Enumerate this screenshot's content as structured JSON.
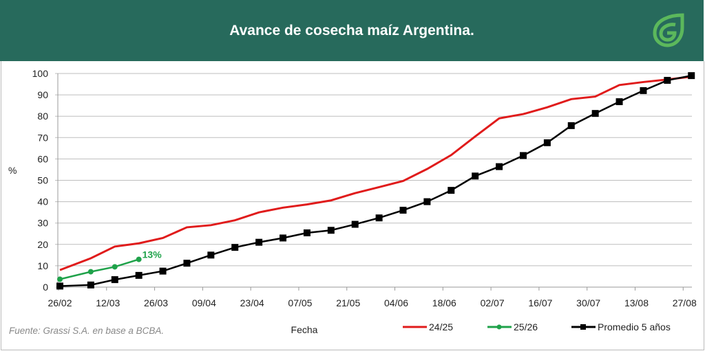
{
  "header": {
    "title": "Avance de cosecha maíz Argentina."
  },
  "source": "Fuente: Grassi S.A. en base a BCBA.",
  "colors": {
    "header": "#276a5c",
    "red": "#e01b1b",
    "green": "#1fa24a",
    "black": "#000000",
    "logo": "#5cb85c"
  },
  "chart_data": {
    "type": "line",
    "title": "Avance de cosecha maíz Argentina.",
    "xlabel": "Fecha",
    "ylabel": "%",
    "ylim": [
      0,
      100
    ],
    "yticks": [
      0,
      10,
      20,
      30,
      40,
      50,
      60,
      70,
      80,
      90,
      100
    ],
    "xticks_days": [
      0,
      14,
      28,
      42,
      56,
      70,
      84,
      98,
      112,
      126,
      140,
      154,
      168,
      182
    ],
    "xtick_labels": [
      "26/02",
      "12/03",
      "26/03",
      "09/04",
      "23/04",
      "07/05",
      "21/05",
      "04/06",
      "18/06",
      "02/07",
      "16/07",
      "30/07",
      "13/08",
      "27/08"
    ],
    "x_days": [
      0,
      9,
      16,
      23,
      30,
      37,
      44,
      51,
      58,
      65,
      72,
      79,
      86,
      93,
      100,
      107,
      114,
      121,
      128,
      135,
      142,
      149,
      156,
      163,
      170,
      177,
      184
    ],
    "grid": "horizontal",
    "legend_position": "bottom-right",
    "series": [
      {
        "name": "24/25",
        "color": "#e01b1b",
        "marker": "none",
        "values": [
          8,
          13.5,
          19,
          20.5,
          23,
          28,
          29,
          31.3,
          35,
          37.2,
          38.7,
          40.6,
          44,
          46.8,
          49.7,
          55.3,
          61.8,
          70.5,
          79,
          81,
          84.2,
          88,
          89.2,
          94.6,
          96,
          97.2,
          98.5
        ]
      },
      {
        "name": "25/26",
        "color": "#1fa24a",
        "marker": "circle",
        "values": [
          3.7,
          7.2,
          9.5,
          13
        ],
        "last_label": "13%"
      },
      {
        "name": "Promedio 5 años",
        "color": "#000000",
        "marker": "square",
        "values": [
          0.5,
          1,
          3.5,
          5.5,
          7.5,
          11.2,
          15,
          18.6,
          21,
          23,
          25.4,
          26.6,
          29.4,
          32.4,
          36,
          40,
          45.3,
          52,
          56.4,
          61.6,
          67.6,
          75.6,
          81.3,
          86.8,
          92,
          96.8,
          99
        ]
      }
    ]
  }
}
